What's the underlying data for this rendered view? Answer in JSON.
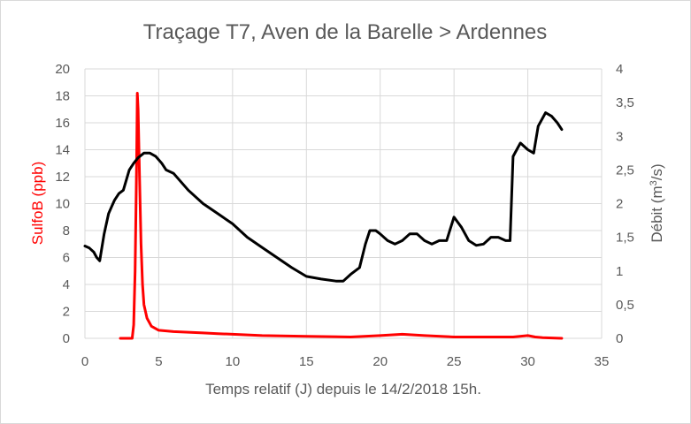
{
  "chart_data": {
    "type": "line",
    "title": "Traçage T7, Aven de la Barelle > Ardennes",
    "xlabel": "Temps relatif (J) depuis le 14/2/2018 15h.",
    "ylabel_left": "SulfoB (ppb)",
    "ylabel_right_prefix": "Débit (m",
    "ylabel_right_sup": "3",
    "ylabel_right_suffix": "/s)",
    "xlim": [
      0,
      35
    ],
    "ylim_left": [
      0,
      20
    ],
    "ylim_right": [
      0,
      4
    ],
    "x_ticks": [
      "0",
      "5",
      "10",
      "15",
      "20",
      "25",
      "30",
      "35"
    ],
    "y_left_ticks": [
      "0",
      "2",
      "4",
      "6",
      "8",
      "10",
      "12",
      "14",
      "16",
      "18",
      "20"
    ],
    "y_right_ticks": [
      "0",
      "0,5",
      "1",
      "1,5",
      "2",
      "2,5",
      "3",
      "3,5",
      "4"
    ],
    "grid": true,
    "colors": {
      "sulfob": "#ff0000",
      "debit": "#000000",
      "grid": "#d9d9d9",
      "text": "#595959"
    },
    "series": [
      {
        "axis": "left",
        "x": [
          2.4,
          3.2,
          3.3,
          3.4,
          3.5,
          3.55,
          3.6,
          3.7,
          3.8,
          3.9,
          4.0,
          4.2,
          4.5,
          5.0,
          5.5,
          6.0,
          7.0,
          8.0,
          9.0,
          10.0,
          12.0,
          15.0,
          18.0,
          20.0,
          21.5,
          23.0,
          25.0,
          27.0,
          29.0,
          30.0,
          30.5,
          31.0,
          32.3
        ],
        "y": [
          0.0,
          0.0,
          1.0,
          5.0,
          13.0,
          18.2,
          17.0,
          12.0,
          7.0,
          4.0,
          2.5,
          1.5,
          0.9,
          0.6,
          0.55,
          0.5,
          0.45,
          0.4,
          0.35,
          0.3,
          0.2,
          0.15,
          0.1,
          0.2,
          0.3,
          0.2,
          0.1,
          0.1,
          0.1,
          0.2,
          0.1,
          0.05,
          0.0
        ]
      },
      {
        "axis": "right",
        "x": [
          0,
          0.3,
          0.6,
          0.8,
          1.0,
          1.3,
          1.6,
          1.8,
          2.0,
          2.3,
          2.6,
          3.0,
          3.3,
          3.6,
          4.0,
          4.4,
          4.8,
          5.2,
          5.5,
          6.0,
          7.0,
          8.0,
          9.0,
          10.0,
          11.0,
          12.0,
          13.0,
          14.0,
          15.0,
          16.0,
          17.0,
          17.5,
          18.0,
          18.6,
          19.0,
          19.3,
          19.7,
          20.0,
          20.5,
          21.0,
          21.5,
          22.0,
          22.5,
          23.0,
          23.5,
          24.0,
          24.5,
          25.0,
          25.5,
          26.0,
          26.5,
          27.0,
          27.5,
          28.0,
          28.5,
          28.8,
          29.0,
          29.5,
          30.0,
          30.4,
          30.7,
          31.2,
          31.6,
          32.0,
          32.3
        ],
        "y": [
          1.37,
          1.34,
          1.28,
          1.2,
          1.15,
          1.55,
          1.85,
          1.95,
          2.05,
          2.15,
          2.2,
          2.5,
          2.6,
          2.68,
          2.75,
          2.75,
          2.7,
          2.6,
          2.5,
          2.45,
          2.2,
          2.0,
          1.85,
          1.7,
          1.5,
          1.35,
          1.2,
          1.05,
          0.92,
          0.88,
          0.85,
          0.85,
          0.95,
          1.05,
          1.4,
          1.6,
          1.6,
          1.55,
          1.45,
          1.4,
          1.45,
          1.55,
          1.55,
          1.45,
          1.4,
          1.45,
          1.45,
          1.8,
          1.65,
          1.45,
          1.38,
          1.4,
          1.5,
          1.5,
          1.45,
          1.45,
          2.7,
          2.9,
          2.8,
          2.75,
          3.15,
          3.35,
          3.3,
          3.2,
          3.1
        ]
      }
    ]
  }
}
